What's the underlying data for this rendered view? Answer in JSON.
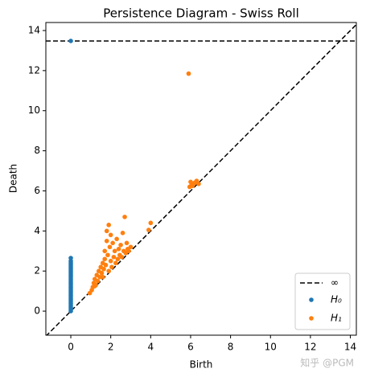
{
  "chart_data": {
    "type": "scatter",
    "title": "Persistence Diagram - Swiss Roll",
    "x_label": "Birth",
    "y_label": "Death",
    "xlim": [
      -1.25,
      14.3
    ],
    "ylim": [
      -1.2,
      14.4
    ],
    "xticks": [
      0,
      2,
      4,
      6,
      8,
      10,
      12,
      14
    ],
    "yticks": [
      0,
      2,
      4,
      6,
      8,
      10,
      12,
      14
    ],
    "legend": "lower right",
    "inf_line": {
      "name": "∞",
      "y": 13.48,
      "color": "#000000"
    },
    "series": [
      {
        "name": "H₀",
        "color": "#1f77b4",
        "x": [
          0,
          0,
          0,
          0,
          0,
          0,
          0,
          0,
          0,
          0,
          0,
          0,
          0,
          0,
          0,
          0,
          0,
          0,
          0,
          0,
          0,
          0,
          0,
          0,
          0,
          0,
          0,
          0
        ],
        "values": [
          0,
          0.1,
          0.2,
          0.3,
          0.4,
          0.5,
          0.6,
          0.7,
          0.8,
          0.9,
          1.0,
          1.1,
          1.2,
          1.3,
          1.4,
          1.5,
          1.6,
          1.7,
          1.8,
          1.9,
          2.0,
          2.1,
          2.2,
          2.3,
          2.4,
          2.5,
          2.65,
          13.48
        ]
      },
      {
        "name": "H₁",
        "color": "#ff7f0e",
        "x": [
          0.95,
          1.05,
          1.1,
          1.15,
          1.2,
          1.2,
          1.25,
          1.3,
          1.35,
          1.4,
          1.45,
          1.5,
          1.55,
          1.6,
          1.6,
          1.65,
          1.7,
          1.7,
          1.75,
          1.8,
          1.8,
          1.85,
          1.9,
          1.9,
          1.95,
          2.0,
          2.0,
          2.05,
          2.1,
          2.15,
          2.2,
          2.25,
          2.3,
          2.35,
          2.4,
          2.45,
          2.5,
          2.55,
          2.6,
          2.65,
          2.7,
          2.75,
          2.8,
          2.85,
          2.9,
          3.0,
          3.9,
          4.0,
          5.9,
          5.95,
          6.0,
          6.05,
          6.1,
          6.2,
          6.3,
          6.4
        ],
        "values": [
          0.9,
          1.05,
          1.2,
          1.4,
          1.6,
          1.25,
          1.3,
          1.8,
          1.5,
          2.0,
          1.7,
          2.2,
          1.9,
          2.4,
          1.7,
          2.1,
          2.6,
          3.0,
          2.3,
          3.5,
          4.0,
          2.8,
          4.3,
          2.0,
          3.2,
          3.8,
          2.5,
          2.2,
          3.4,
          2.7,
          3.0,
          2.4,
          3.6,
          2.6,
          3.1,
          2.8,
          3.3,
          2.7,
          3.9,
          3.0,
          4.7,
          2.9,
          3.4,
          3.1,
          3.0,
          3.2,
          4.05,
          4.4,
          11.85,
          6.2,
          6.45,
          6.3,
          6.25,
          6.4,
          6.5,
          6.35
        ]
      }
    ],
    "watermark": "知乎 @PGM"
  }
}
